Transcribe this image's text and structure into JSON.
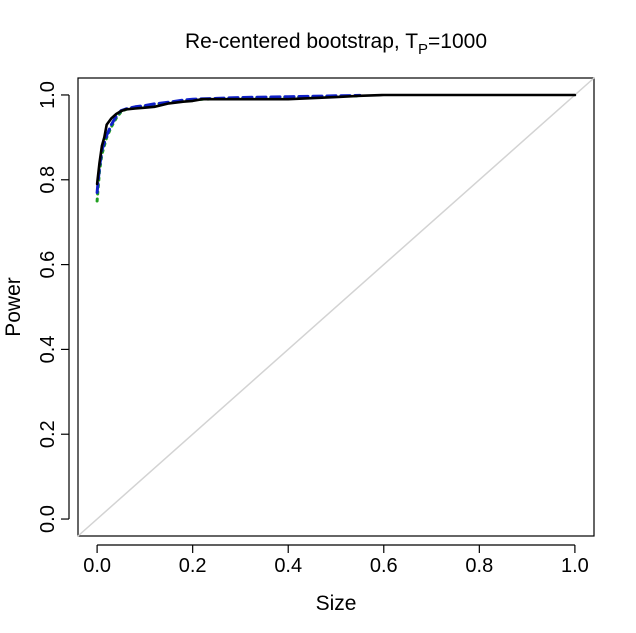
{
  "chart_data": {
    "type": "line",
    "title_main": "Re-centered bootstrap, T",
    "title_sub": "P",
    "title_end": "=1000",
    "xlabel": "Size",
    "ylabel": "Power",
    "xlim": [
      -0.04,
      1.04
    ],
    "ylim": [
      -0.04,
      1.04
    ],
    "x_ticks": [
      0.0,
      0.2,
      0.4,
      0.6,
      0.8,
      1.0
    ],
    "y_ticks": [
      0.0,
      0.2,
      0.4,
      0.6,
      0.8,
      1.0
    ],
    "x_tick_labels": [
      "0.0",
      "0.2",
      "0.4",
      "0.6",
      "0.8",
      "1.0"
    ],
    "y_tick_labels": [
      "0.0",
      "0.2",
      "0.4",
      "0.6",
      "0.8",
      "1.0"
    ],
    "grid": false,
    "legend": "none",
    "series": [
      {
        "style": "solid",
        "color": "#000000",
        "width": 2.6,
        "x": [
          0.0,
          0.005,
          0.01,
          0.015,
          0.02,
          0.03,
          0.04,
          0.05,
          0.06,
          0.08,
          0.1,
          0.12,
          0.15,
          0.18,
          0.2,
          0.22,
          0.3,
          0.4,
          0.5,
          0.55,
          0.6,
          0.8,
          1.0
        ],
        "y": [
          0.79,
          0.84,
          0.88,
          0.9,
          0.93,
          0.945,
          0.955,
          0.962,
          0.966,
          0.968,
          0.97,
          0.972,
          0.98,
          0.984,
          0.986,
          0.99,
          0.99,
          0.99,
          0.995,
          0.998,
          1.0,
          1.0,
          1.0
        ]
      },
      {
        "style": "dashed",
        "color": "#1020c8",
        "width": 3.0,
        "x": [
          0.0,
          0.005,
          0.01,
          0.02,
          0.03,
          0.04,
          0.05,
          0.06,
          0.08,
          0.1,
          0.12,
          0.15,
          0.18,
          0.2,
          0.25,
          0.3,
          0.4,
          0.5,
          0.55
        ],
        "y": [
          0.77,
          0.83,
          0.87,
          0.905,
          0.93,
          0.95,
          0.963,
          0.967,
          0.972,
          0.975,
          0.979,
          0.983,
          0.988,
          0.99,
          0.992,
          0.994,
          0.996,
          0.998,
          0.999
        ]
      },
      {
        "style": "dotted",
        "color": "#20a020",
        "width": 3.0,
        "x": [
          0.0,
          0.005,
          0.01,
          0.02,
          0.03,
          0.04,
          0.05,
          0.06,
          0.08,
          0.1,
          0.12,
          0.15,
          0.18,
          0.2,
          0.25,
          0.3,
          0.4,
          0.5,
          0.55
        ],
        "y": [
          0.75,
          0.82,
          0.86,
          0.9,
          0.925,
          0.945,
          0.96,
          0.966,
          0.971,
          0.974,
          0.978,
          0.982,
          0.987,
          0.989,
          0.991,
          0.993,
          0.995,
          0.997,
          0.998
        ]
      },
      {
        "style": "solid",
        "color": "#d3d3d3",
        "width": 1.5,
        "x": [
          -0.04,
          1.04
        ],
        "y": [
          -0.04,
          1.04
        ]
      }
    ]
  }
}
